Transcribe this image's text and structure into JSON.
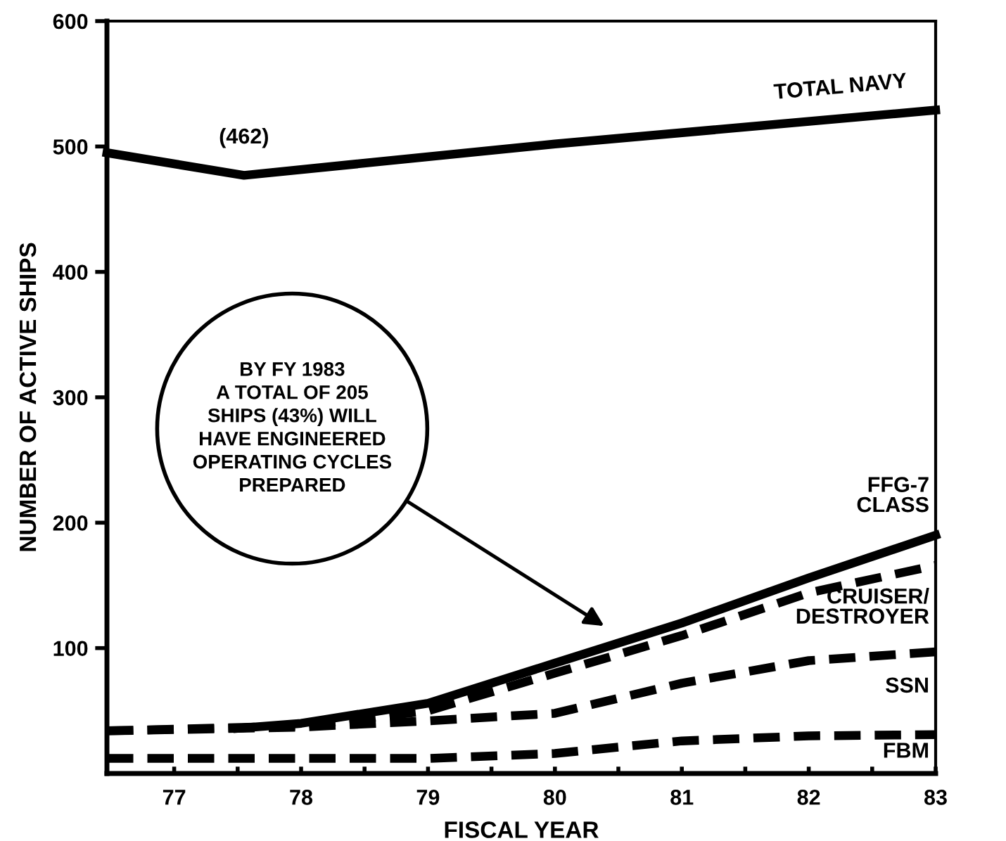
{
  "chart_data": {
    "type": "line",
    "xlabel": "FISCAL YEAR",
    "ylabel": "NUMBER OF ACTIVE SHIPS",
    "xlim": [
      76.47,
      83
    ],
    "ylim": [
      0,
      600
    ],
    "xticks": [
      {
        "value": 77,
        "label": "77"
      },
      {
        "value": 77.5,
        "label": null
      },
      {
        "value": 78,
        "label": "78"
      },
      {
        "value": 78.5,
        "label": null
      },
      {
        "value": 79,
        "label": "79"
      },
      {
        "value": 79.5,
        "label": null
      },
      {
        "value": 80,
        "label": "80"
      },
      {
        "value": 80.5,
        "label": null
      },
      {
        "value": 81,
        "label": "81"
      },
      {
        "value": 81.5,
        "label": null
      },
      {
        "value": 82,
        "label": "82"
      },
      {
        "value": 82.5,
        "label": null
      },
      {
        "value": 83,
        "label": "83"
      }
    ],
    "yticks": [
      100,
      200,
      300,
      400,
      500,
      600
    ],
    "grid": false,
    "legend": false,
    "marker": "none",
    "series": [
      {
        "name": "TOTAL NAVY",
        "color": "#000000",
        "line_style": "solid",
        "x": [
          76.47,
          77.55,
          80,
          83
        ],
        "values": [
          495,
          477,
          502,
          529
        ]
      },
      {
        "name": "FFG-7\nCLASS",
        "color": "#000000",
        "line_style": "solid",
        "x": [
          77.5,
          78,
          79,
          80,
          81,
          82,
          83
        ],
        "values": [
          36,
          40,
          56,
          88,
          120,
          156,
          190
        ]
      },
      {
        "name": "CRUISER/\nDESTROYER",
        "color": "#000000",
        "line_style": "dashed",
        "x": [
          76.47,
          78,
          79,
          80,
          81,
          82,
          83
        ],
        "values": [
          34,
          38,
          50,
          80,
          110,
          144,
          166
        ]
      },
      {
        "name": "SSN",
        "color": "#000000",
        "line_style": "dashed",
        "x": [
          76.47,
          78,
          79,
          80,
          81,
          82,
          83
        ],
        "values": [
          34,
          37,
          42,
          48,
          72,
          90,
          97
        ]
      },
      {
        "name": "FBM",
        "color": "#000000",
        "line_style": "dashed",
        "x": [
          76.47,
          78,
          79,
          80,
          81,
          82,
          83
        ],
        "values": [
          12,
          12,
          12,
          16,
          26,
          30,
          31
        ]
      }
    ],
    "annotations": [
      {
        "text": "(462)",
        "x": 77.55,
        "y": 477
      },
      "BY FY 1983\nA TOTAL OF 205\nSHIPS (43%) WILL\nHAVE ENGINEERED\nOPERATING CYCLES\nPREPARED"
    ]
  }
}
